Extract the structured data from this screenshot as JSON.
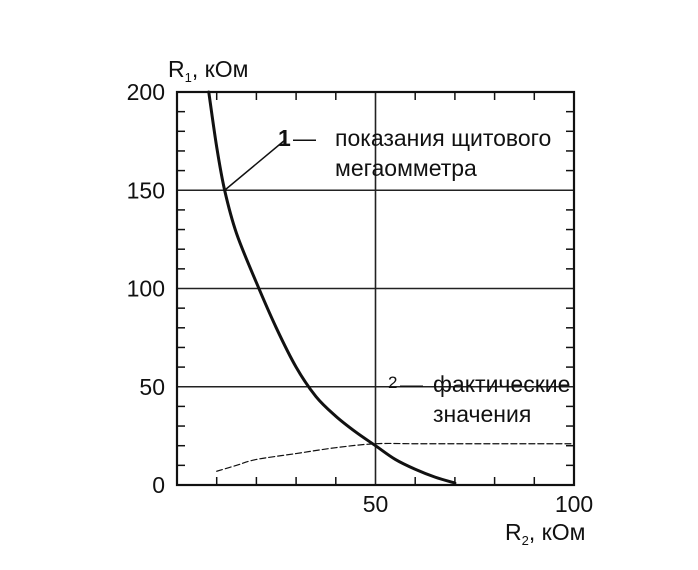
{
  "chart_data": {
    "type": "line",
    "xlabel": "R",
    "xlabel_sub": "2",
    "xlabel_unit": ", кОм",
    "ylabel": "R",
    "ylabel_sub": "1",
    "ylabel_unit": ", кОм",
    "xlim": [
      0,
      100
    ],
    "ylim": [
      0,
      200
    ],
    "x_ticks": [
      0,
      50,
      100
    ],
    "y_ticks": [
      0,
      50,
      100,
      150,
      200
    ],
    "x_tick_labels": [
      "",
      "50",
      "100"
    ],
    "y_tick_labels": [
      "0",
      "50",
      "100",
      "150",
      "200"
    ],
    "grid": true,
    "series": [
      {
        "name": "показания щитового мегаомметра",
        "number": "1",
        "style": "solid",
        "x": [
          8,
          10,
          12,
          15,
          20,
          25,
          30,
          35,
          40,
          45,
          50,
          55,
          60,
          65,
          70
        ],
        "y": [
          200,
          172,
          150,
          128,
          103,
          80,
          60,
          45,
          35,
          27,
          20,
          13,
          8,
          4,
          1
        ]
      },
      {
        "name": "фактические значения",
        "number": "2",
        "style": "dashed",
        "x": [
          10,
          15,
          20,
          30,
          40,
          50,
          60,
          70,
          80,
          90,
          100
        ],
        "y": [
          7,
          10,
          13,
          16,
          19,
          21,
          21,
          21,
          21,
          21,
          21
        ]
      }
    ],
    "annotations": [
      {
        "number": "1",
        "dash": "—",
        "lines": [
          "показания щитового",
          "мегаомметра"
        ]
      },
      {
        "number": "2",
        "dash": "—",
        "lines": [
          "фактические",
          "значения"
        ]
      }
    ]
  }
}
